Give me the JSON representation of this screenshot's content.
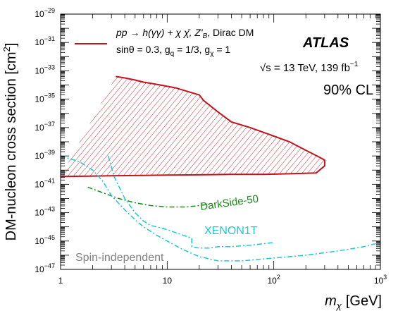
{
  "chart_data": {
    "type": "line",
    "title": "",
    "xlabel": {
      "base": "m",
      "sub": "χ",
      "unit": "[GeV]"
    },
    "ylabel": {
      "text": "DM-nucleon cross section [cm",
      "sup": "2",
      "close": "]"
    },
    "xscale": "log",
    "yscale": "log",
    "xlim": [
      1,
      1000
    ],
    "ylim": [
      1e-47,
      1e-29
    ],
    "x_ticks": [
      {
        "v": 1,
        "base": "1",
        "exp": ""
      },
      {
        "v": 10,
        "base": "10",
        "exp": ""
      },
      {
        "v": 100,
        "base": "10",
        "exp": "2"
      },
      {
        "v": 1000,
        "base": "10",
        "exp": "3"
      }
    ],
    "y_ticks": [
      {
        "v": -47,
        "base": "10",
        "exp": "−47"
      },
      {
        "v": -45,
        "base": "10",
        "exp": "−45"
      },
      {
        "v": -43,
        "base": "10",
        "exp": "−43"
      },
      {
        "v": -41,
        "base": "10",
        "exp": "−41"
      },
      {
        "v": -39,
        "base": "10",
        "exp": "−39"
      },
      {
        "v": -37,
        "base": "10",
        "exp": "−37"
      },
      {
        "v": -35,
        "base": "10",
        "exp": "−35"
      },
      {
        "v": -33,
        "base": "10",
        "exp": "−33"
      },
      {
        "v": -31,
        "base": "10",
        "exp": "−31"
      },
      {
        "v": -29,
        "base": "10",
        "exp": "−29"
      }
    ],
    "annotations": {
      "experiment": "ATLAS",
      "energy": "√s = 13 TeV, 139 fb",
      "energy_sup": "−1",
      "cl": "90% CL",
      "spin": "Spin-independent"
    },
    "legend": {
      "line1": "pp → h(γγ) + χ χ̄, Z'",
      "line1_sub": "B",
      "line1_end": ", Dirac DM",
      "line2": "sinθ = 0.3, g",
      "line2_sub1": "q",
      "line2_mid": " = 1/3, g",
      "line2_sub2": "χ",
      "line2_end": " = 1",
      "color": "#c0141e"
    },
    "series": [
      {
        "name": "ATLAS limit",
        "color": "#c0141e",
        "style": "solid",
        "x": [
          1,
          3,
          6,
          10,
          20,
          40,
          80,
          150,
          250,
          300,
          300,
          270,
          200,
          140,
          100,
          60,
          40,
          30,
          22,
          20,
          18,
          12,
          8,
          6,
          5,
          4,
          3.3
        ],
        "y": [
          -40.45,
          -40.4,
          -40.37,
          -40.35,
          -40.33,
          -40.3,
          -40.3,
          -40.25,
          -40.2,
          -39.7,
          -39.3,
          -39.1,
          -38.6,
          -38.0,
          -37.6,
          -37.0,
          -36.6,
          -35.9,
          -35.1,
          -34.7,
          -34.6,
          -34.2,
          -33.95,
          -33.8,
          -33.65,
          -33.5,
          -33.4
        ]
      },
      {
        "name": "DarkSide-50",
        "color": "#1a8c1a",
        "style": "dashdot",
        "x": [
          1.8,
          2.5,
          3.5,
          5,
          7,
          10,
          15,
          20,
          25
        ],
        "y": [
          -41.2,
          -41.6,
          -42.0,
          -42.3,
          -42.5,
          -42.6,
          -42.6,
          -42.5,
          -42.4
        ]
      },
      {
        "name": "XENON1T",
        "color": "#1ec8d2",
        "style": "dashdot",
        "x": [
          2.8,
          3.2,
          4,
          5,
          6,
          7,
          8,
          10,
          13,
          17,
          17,
          20,
          25,
          30,
          40,
          60,
          100
        ],
        "y": [
          -39.0,
          -40.5,
          -42.0,
          -43.0,
          -43.6,
          -43.9,
          -44.0,
          -44.2,
          -44.5,
          -44.8,
          -45.4,
          -45.5,
          -45.5,
          -45.4,
          -45.4,
          -45.3,
          -45.1
        ]
      },
      {
        "name": "XENON1T (second curve)",
        "color": "#1ec8d2",
        "style": "dashdot",
        "x": [
          1,
          1.5,
          2,
          2.5,
          3,
          4,
          5,
          6,
          8,
          10,
          14,
          20,
          30,
          50,
          100,
          200,
          400,
          700,
          1000
        ],
        "y": [
          -39.0,
          -39.4,
          -40.0,
          -40.8,
          -41.8,
          -42.8,
          -43.5,
          -44.0,
          -44.6,
          -45.0,
          -45.6,
          -46.1,
          -46.4,
          -46.4,
          -46.2,
          -46.0,
          -45.7,
          -45.4,
          -45.1
        ]
      }
    ],
    "series_labels": [
      "DarkSide-50",
      "XENON1T"
    ]
  }
}
